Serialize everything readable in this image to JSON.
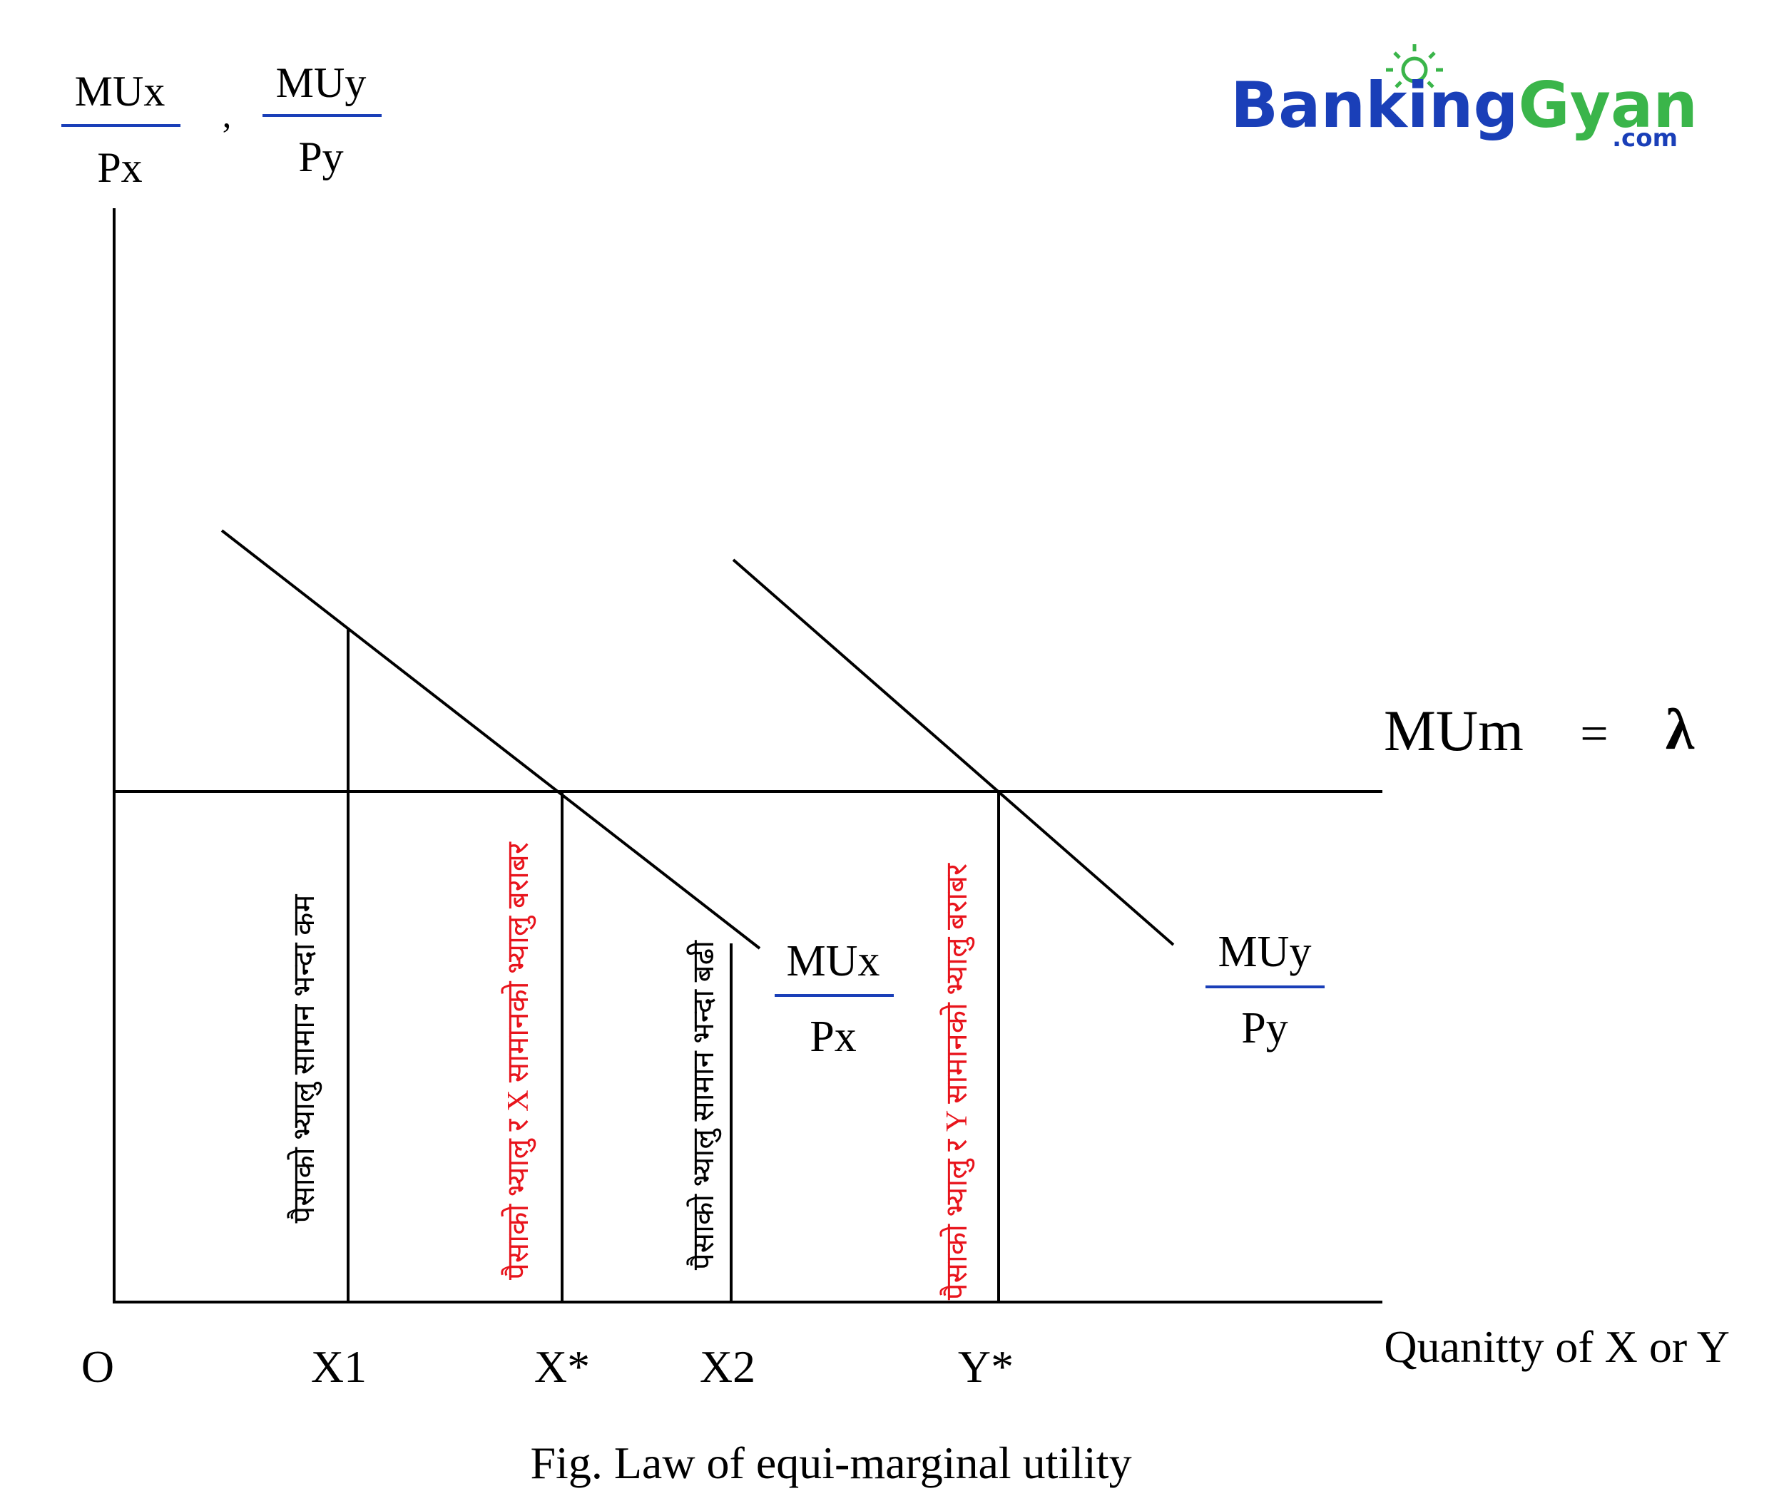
{
  "axis": {
    "y_label": {
      "numerator_x": "MUx",
      "denominator_x": "Px",
      "separator": ",",
      "numerator_y": "MUy",
      "denominator_y": "Py"
    },
    "x_label": "Quanitty of X or Y",
    "origin": "O",
    "ticks": [
      "X1",
      "X*",
      "X2",
      "Y*"
    ]
  },
  "curves": {
    "mux_label": {
      "numerator": "MUx",
      "denominator": "Px"
    },
    "muy_label": {
      "numerator": "MUy",
      "denominator": "Py"
    },
    "mum_label": "MUm",
    "equals": "=",
    "lambda": "λ"
  },
  "annotations": {
    "x1_text": "पैसाको भ्यालु सामान भन्दा कम",
    "xstar_text": "पैसाको भ्यालु र X सामानको भ्यालु बराबर",
    "x2_text": "पैसाको भ्यालु सामान भन्दा बढी",
    "ystar_text": "पैसाको भ्यालु र Y सामानको भ्यालु बराबर"
  },
  "caption": "Fig. Law of equi-marginal utility",
  "logo": {
    "part1": "Banking",
    "part2": "Gyan",
    "suffix": ".com"
  },
  "colors": {
    "fraction_bar": "#1a3fb8",
    "red_text": "#e8141c",
    "logo_blue": "#1a3fb8",
    "logo_green": "#3ab54a",
    "logo_bulb": "#3ab54a"
  }
}
